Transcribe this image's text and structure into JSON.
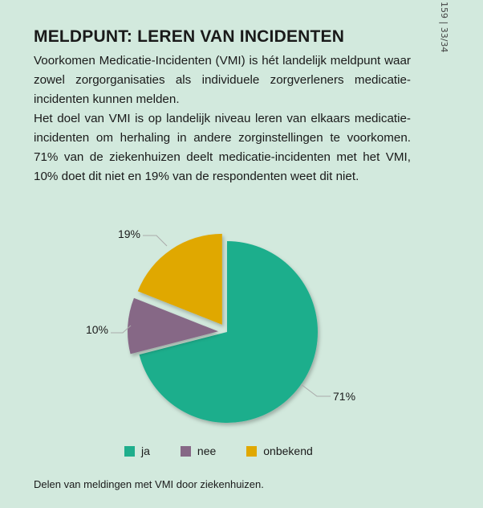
{
  "page_number": "159 | 33/34",
  "title": "MELDPUNT: LEREN VAN INCIDENTEN",
  "paragraphs": [
    "Voorkomen Medicatie-Incidenten (VMI) is hét landelijk meldpunt waar zowel zorgorganisaties als individuele zorgverleners medicatie-incidenten kunnen melden.",
    "Het doel van VMI is op landelijk niveau leren van elkaars medicatie-incidenten om herhaling in andere zorginstellingen te voorkomen. 71% van de ziekenhuizen deelt medicatie-incidenten met het VMI, 10% doet dit niet en 19% van de respondenten weet dit niet."
  ],
  "caption": "Delen van meldingen met VMI door ziekenhuizen.",
  "chart_data": {
    "type": "pie",
    "title": "",
    "categories": [
      "ja",
      "nee",
      "onbekend"
    ],
    "values": [
      71,
      10,
      19
    ],
    "labels": [
      "71%",
      "10%",
      "19%"
    ],
    "colors": [
      "#1fae8c",
      "#866886",
      "#e0a800"
    ],
    "exploded": [
      false,
      true,
      true
    ],
    "legend_position": "bottom"
  }
}
